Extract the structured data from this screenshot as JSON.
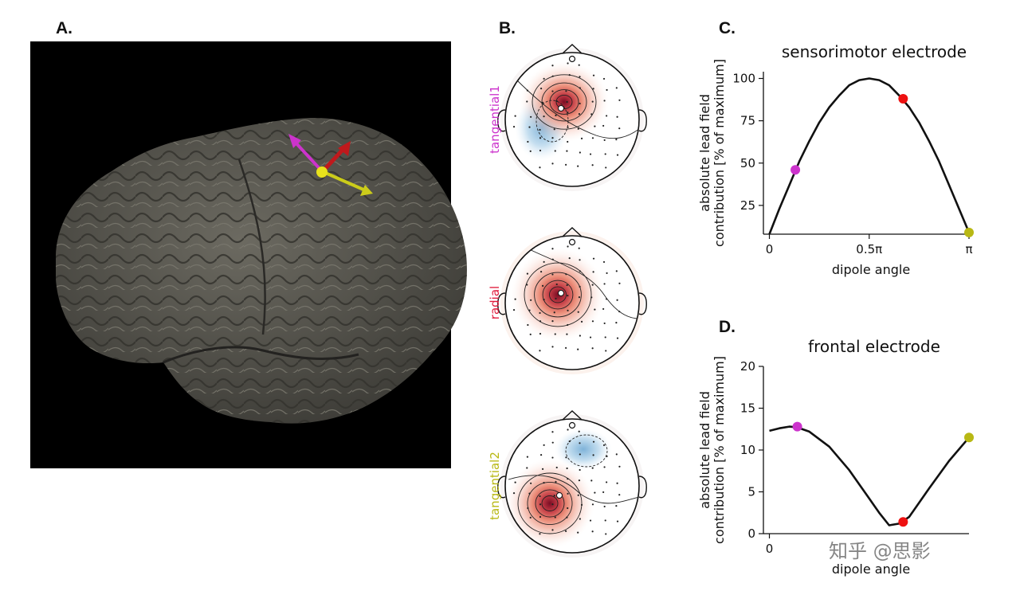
{
  "panels": {
    "a": {
      "label": "A."
    },
    "b": {
      "label": "B."
    },
    "c": {
      "label": "C."
    },
    "d": {
      "label": "D."
    }
  },
  "topomaps": [
    {
      "label": "tangential1",
      "color": "#cc33cc"
    },
    {
      "label": "radial",
      "color": "#e01b3c"
    },
    {
      "label": "tangential2",
      "color": "#b8b814"
    }
  ],
  "brain_arrows": [
    {
      "name": "tangential1",
      "color": "#cc33cc"
    },
    {
      "name": "radial",
      "color": "#c0191c"
    },
    {
      "name": "tangential2",
      "color": "#cccc1a"
    }
  ],
  "marker_colors": [
    "#cc33cc",
    "#ee1111",
    "#b8b814"
  ],
  "watermark": "知乎 @思影",
  "chart_data": [
    {
      "type": "line",
      "title": "sensorimotor electrode",
      "xlabel": "dipole angle",
      "ylabel": [
        "absolute lead field",
        "contribution [% of maximum]"
      ],
      "xlim": [
        -0.03,
        1.0
      ],
      "ylim": [
        8,
        104
      ],
      "xticks": [
        0,
        0.5,
        1
      ],
      "xtick_labels": [
        "0",
        "0.5π",
        "π"
      ],
      "yticks": [
        25,
        50,
        75,
        100
      ],
      "ytick_labels": [
        "25",
        "50",
        "75",
        "100"
      ],
      "x": [
        0,
        0.05,
        0.1,
        0.15,
        0.2,
        0.25,
        0.3,
        0.35,
        0.4,
        0.45,
        0.5,
        0.55,
        0.6,
        0.65,
        0.7,
        0.75,
        0.8,
        0.85,
        0.9,
        0.95,
        1.0
      ],
      "y": [
        8,
        23,
        37,
        51,
        63,
        74,
        83,
        90,
        96,
        99,
        100,
        99,
        96,
        90,
        83,
        74,
        63,
        51,
        37,
        23,
        9
      ],
      "markers": [
        {
          "x": 0.13,
          "y": 46,
          "color": "#cc33cc"
        },
        {
          "x": 0.67,
          "y": 88,
          "color": "#ee1111"
        },
        {
          "x": 1.0,
          "y": 9,
          "color": "#b8b814"
        }
      ]
    },
    {
      "type": "line",
      "title": "frontal electrode",
      "xlabel": "dipole angle",
      "ylabel": [
        "absolute lead field",
        "contribution [% of maximum]"
      ],
      "xlim": [
        -0.03,
        1.0
      ],
      "ylim": [
        0,
        20
      ],
      "xticks": [
        0
      ],
      "xtick_labels": [
        "0"
      ],
      "yticks": [
        0,
        5,
        10,
        15,
        20
      ],
      "ytick_labels": [
        "0",
        "5",
        "10",
        "15",
        "20"
      ],
      "x": [
        0,
        0.05,
        0.1,
        0.14,
        0.2,
        0.3,
        0.4,
        0.5,
        0.55,
        0.6,
        0.65,
        0.7,
        0.8,
        0.9,
        1.0
      ],
      "y": [
        12.3,
        12.6,
        12.8,
        12.7,
        12.2,
        10.4,
        7.6,
        4.2,
        2.5,
        1.0,
        1.2,
        2.0,
        5.4,
        8.7,
        11.5
      ],
      "markers": [
        {
          "x": 0.14,
          "y": 12.8,
          "color": "#cc33cc"
        },
        {
          "x": 0.67,
          "y": 1.4,
          "color": "#ee1111"
        },
        {
          "x": 1.0,
          "y": 11.5,
          "color": "#b8b814"
        }
      ]
    }
  ]
}
